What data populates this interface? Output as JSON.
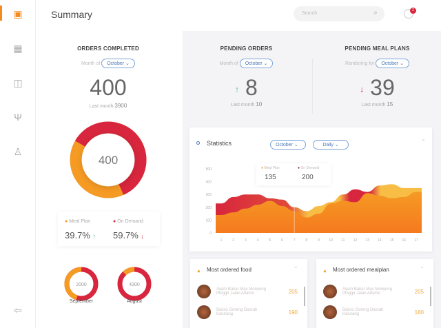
{
  "header": {
    "title": "Summary",
    "search_placeholder": "Search",
    "notification_count": "2"
  },
  "sidebar": {
    "items": [
      "dashboard-icon",
      "calendar-icon",
      "reports-icon",
      "menu-icon",
      "user-icon"
    ],
    "logout": "logout-icon"
  },
  "orders_completed": {
    "title": "ORDERS COMPLETED",
    "filter_label": "Month of",
    "filter_value": "October",
    "value": "400",
    "last_month_label": "Last month",
    "last_month_value": "3900",
    "donut_center": "400",
    "donut_on_demand_fraction": 0.6
  },
  "pending_orders": {
    "title": "PENDING ORDERS",
    "filter_label": "Month of",
    "filter_value": "October",
    "value": "8",
    "trend": "up",
    "last_month_label": "Last month",
    "last_month_value": "10"
  },
  "pending_meal_plans": {
    "title": "PENDING MEAL PLANS",
    "filter_label": "Rendering for",
    "filter_value": "October",
    "value": "39",
    "trend": "down",
    "last_month_label": "Last month",
    "last_month_value": "15"
  },
  "split": {
    "meal_plan_label": "Meal Plan",
    "meal_plan_value": "39.7%",
    "on_demand_label": "On Demand",
    "on_demand_value": "59.7%"
  },
  "months": [
    {
      "label": "September",
      "value": "2000",
      "meal_plan_fraction": 0.45
    },
    {
      "label": "August",
      "value": "4300",
      "meal_plan_fraction": 0.12
    }
  ],
  "colors": {
    "accent": "#f58a1f",
    "on_demand": "#d7263d",
    "meal_plan": "#f59a23",
    "link": "#4a78b5"
  },
  "statistics": {
    "title": "Statistics",
    "month": "October",
    "period": "Daily",
    "tooltip": {
      "meal_plan_label": "Meal Plan",
      "meal_plan_value": "135",
      "on_demand_label": "On Demand",
      "on_demand_value": "200"
    }
  },
  "chart_data": {
    "type": "area",
    "x": [
      1,
      2,
      3,
      4,
      5,
      6,
      7,
      8,
      9,
      10,
      11,
      12,
      13,
      14,
      15,
      16,
      17
    ],
    "yticks": [
      0,
      100,
      200,
      300,
      400,
      500
    ],
    "ylim": [
      0,
      500
    ],
    "series": [
      {
        "name": "On Demand",
        "values": [
          230,
          280,
          300,
          300,
          270,
          260,
          200,
          170,
          210,
          240,
          300,
          340,
          320,
          370,
          380,
          350,
          350
        ]
      },
      {
        "name": "Meal Plan",
        "values": [
          140,
          160,
          190,
          220,
          250,
          210,
          170,
          120,
          150,
          230,
          250,
          240,
          310,
          290,
          270,
          280,
          320
        ]
      }
    ]
  },
  "most_ordered_food": {
    "title": "Most ordered food",
    "items": [
      {
        "name": "Ayam Bakar Mas Monyong Pinggir Jalan Alfamo",
        "count": "205"
      },
      {
        "name": "Bakso Goreng Dasrah Kalurang",
        "count": "190"
      }
    ]
  },
  "most_ordered_mealplan": {
    "title": "Most ordered mealplan",
    "items": [
      {
        "name": "Ayam Bakar Mas Monyong Pinggir Jalan Alfamo",
        "count": "205"
      },
      {
        "name": "Bakso Goreng Dasrah Kalurang",
        "count": "180"
      }
    ]
  }
}
